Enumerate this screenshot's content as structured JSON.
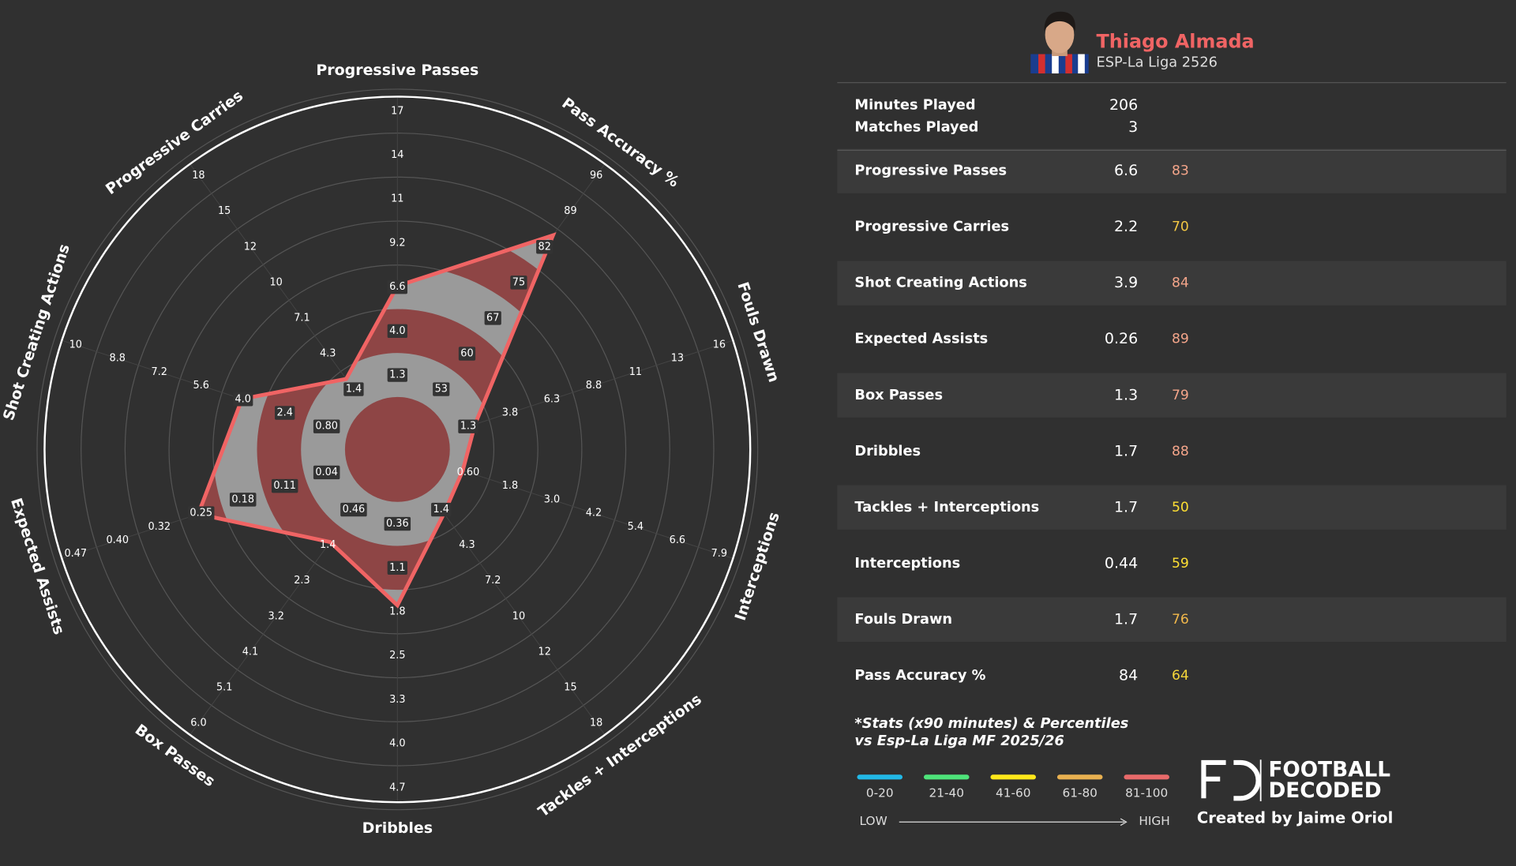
{
  "player": {
    "name": "Thiago Almada",
    "competition": "ESP-La Liga 2526"
  },
  "info": [
    {
      "label": "Minutes Played",
      "value": 206
    },
    {
      "label": "Matches Played",
      "value": 3
    }
  ],
  "chart_data": {
    "type": "radar",
    "categories": [
      "Progressive Passes",
      "Progressive Carries",
      "Shot Creating Actions",
      "Expected Assists",
      "Box Passes",
      "Dribbles",
      "Tackles + Interceptions",
      "Interceptions",
      "Fouls Drawn",
      "Pass Accuracy %"
    ],
    "values": [
      6.6,
      2.2,
      3.9,
      0.26,
      1.3,
      1.7,
      1.7,
      0.44,
      1.7,
      84
    ],
    "percentiles": [
      83,
      70,
      84,
      89,
      79,
      88,
      50,
      59,
      76,
      64
    ],
    "percentile_colors": [
      "#f4a58a",
      "#f2c744",
      "#f4a58a",
      "#f4a58a",
      "#f4a58a",
      "#f4a58a",
      "#ffe033",
      "#ffe033",
      "#f2b84b",
      "#f5d63a"
    ],
    "axis_ticks": [
      [
        1.3,
        {
          "value": 4,
          "label": "4.0"
        },
        6.6,
        9.2,
        11,
        14,
        17
      ],
      [
        1.4,
        4.3,
        7.1,
        10,
        12,
        15,
        18
      ],
      [
        {
          "value": 0.8,
          "label": "0.80"
        },
        2.4,
        {
          "value": 4,
          "label": "4.0"
        },
        5.6,
        7.2,
        8.8,
        10
      ],
      [
        0.04,
        0.11,
        0.18,
        0.25,
        0.32,
        {
          "value": 0.4,
          "label": "0.40"
        },
        0.47
      ],
      [
        0.46,
        1.4,
        2.3,
        3.2,
        4.1,
        5.1,
        {
          "value": 6,
          "label": "6.0"
        }
      ],
      [
        0.36,
        1.1,
        1.8,
        2.5,
        3.3,
        {
          "value": 4,
          "label": "4.0"
        },
        4.7
      ],
      [
        1.4,
        4.3,
        7.2,
        10,
        12,
        15,
        18
      ],
      [
        {
          "value": 0.6,
          "label": "0.60"
        },
        1.8,
        {
          "value": 3,
          "label": "3.0"
        },
        4.2,
        5.4,
        6.6,
        7.9
      ],
      [
        1.3,
        3.8,
        6.3,
        8.8,
        11,
        13,
        16
      ],
      [
        53,
        60,
        67,
        75,
        82,
        89,
        96
      ]
    ],
    "color": "#f06464",
    "ring_colors": [
      "#8e4545",
      "#9a9a9a"
    ]
  },
  "footnote": [
    "*Stats (x90 minutes) & Percentiles",
    "vs Esp-La Liga MF 2025/26"
  ],
  "legend": {
    "items": [
      {
        "label": "0-20",
        "color": "#22b8e6"
      },
      {
        "label": "21-40",
        "color": "#4ee47a"
      },
      {
        "label": "41-60",
        "color": "#ffe81a"
      },
      {
        "label": "61-80",
        "color": "#e8b050"
      },
      {
        "label": "81-100",
        "color": "#e86a6a"
      }
    ],
    "low": "LOW",
    "high": "HIGH"
  },
  "branding": {
    "logo_lines": [
      "FOOTBALL",
      "DECODED"
    ],
    "credit": "Created by Jaime Oriol"
  }
}
